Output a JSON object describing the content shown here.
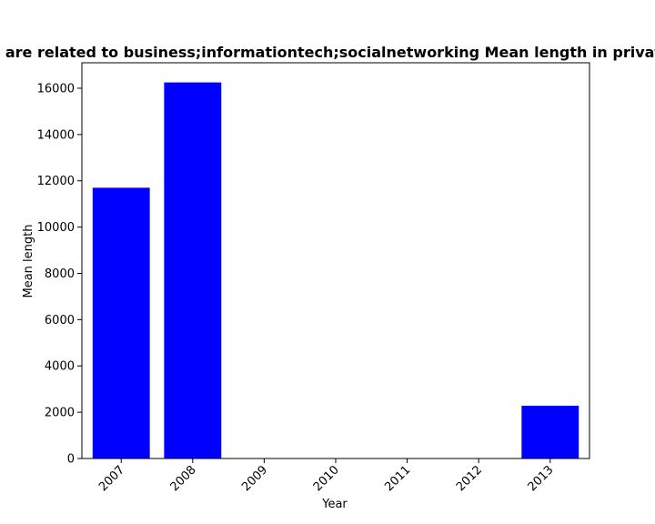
{
  "chart_data": {
    "type": "bar",
    "title": "... are related to business;informationtech;socialnetworking Mean length in private",
    "xlabel": "Year",
    "ylabel": "Mean length",
    "categories": [
      "2007",
      "2008",
      "2009",
      "2010",
      "2011",
      "2012",
      "2013"
    ],
    "values": [
      11700,
      16250,
      0,
      0,
      0,
      0,
      2280
    ],
    "ylim": [
      0,
      17100
    ],
    "yticks": [
      0,
      2000,
      4000,
      6000,
      8000,
      10000,
      12000,
      14000,
      16000
    ],
    "ytick_labels": [
      "0",
      "2000",
      "4000",
      "6000",
      "8000",
      "10000",
      "12000",
      "14000",
      "16000"
    ],
    "grid": false,
    "bar_color": "#0000ff"
  }
}
